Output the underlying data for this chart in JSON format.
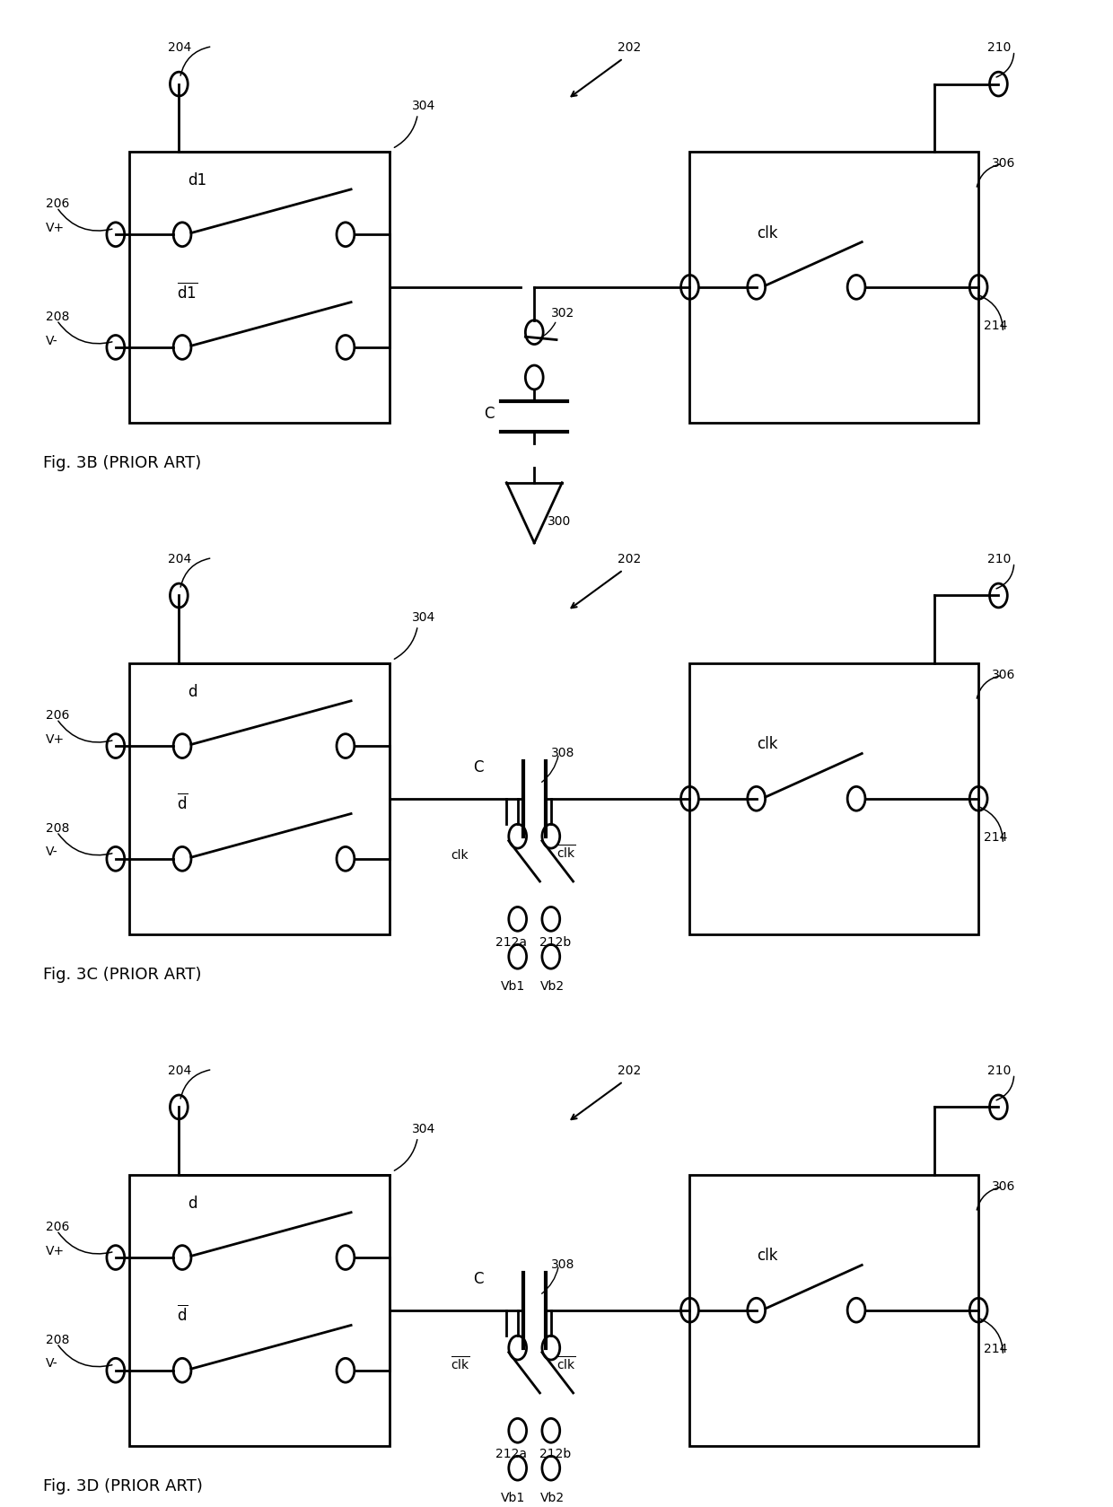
{
  "bg_color": "#ffffff",
  "line_color": "#000000",
  "lw": 2.0,
  "fig_width": 12.4,
  "fig_height": 16.79,
  "panels": [
    {
      "name": "3B",
      "label": "Fig. 3B (PRIOR ART)",
      "ybase": 0.695
    },
    {
      "name": "3C",
      "label": "Fig. 3C (PRIOR ART)",
      "ybase": 0.355
    },
    {
      "name": "3D",
      "label": "Fig. 3D (PRIOR ART)",
      "ybase": 0.015
    }
  ]
}
